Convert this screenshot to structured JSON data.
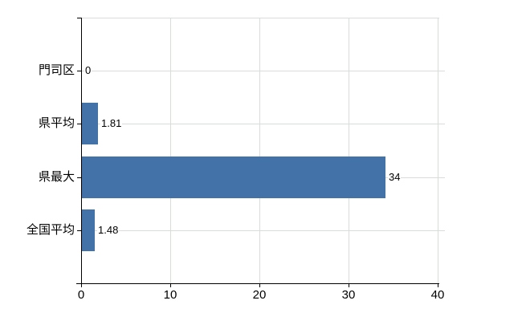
{
  "chart_data": {
    "type": "bar",
    "orientation": "horizontal",
    "title": "",
    "xlabel": "",
    "ylabel": "",
    "categories": [
      "門司区",
      "県平均",
      "県最大",
      "全国平均"
    ],
    "values": [
      0,
      1.81,
      34,
      1.48
    ],
    "value_labels": [
      "0",
      "1.81",
      "34",
      "1.48"
    ],
    "x_ticks": [
      0,
      10,
      20,
      30,
      40
    ],
    "xlim": [
      0,
      40
    ],
    "grid": true,
    "legend": false,
    "colors": {
      "bar": "#4272a8",
      "gridline": "#d9ddd9",
      "axis": "#000000",
      "text": "#000000",
      "background": "#ffffff"
    }
  }
}
